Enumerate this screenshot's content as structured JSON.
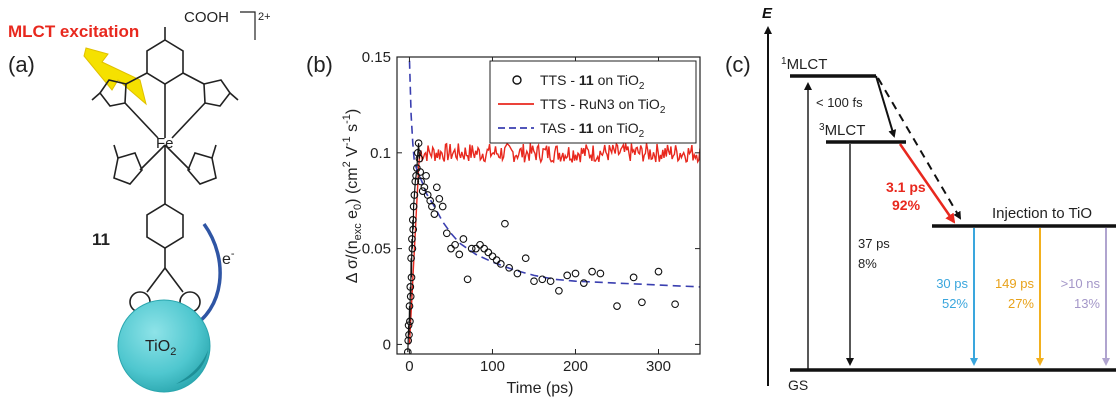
{
  "panels": {
    "a": {
      "label": "(a)",
      "excitation_label": "MLCT excitation",
      "cooh": "COOH",
      "charge": "2+",
      "metal": "Fe",
      "compound_number": "11",
      "electron": "e",
      "electron_sup": "-",
      "substrate": "TiO",
      "substrate_sub": "2",
      "colors": {
        "excitation": "#e8281e",
        "lightning": "#f5e100",
        "arrow": "#2f55a4",
        "sphere": "#4fc7cf"
      }
    },
    "c": {
      "label": "(c)",
      "energy_axis": "E",
      "levels": {
        "s1_sup": "1",
        "s1": "MLCT",
        "t3_sup": "3",
        "t3": "MLCT",
        "injection": "Injection to TiO",
        "gs": "GS"
      },
      "transitions": {
        "isc": "< 100 fs",
        "inj_time": "3.1 ps",
        "inj_pct": "92%",
        "t3_gs_time": "37 ps",
        "t3_gs_pct": "8%",
        "d1_time": "30 ps",
        "d1_pct": "52%",
        "d2_time": "149 ps",
        "d2_pct": "27%",
        "d3_time": ">10 ns",
        "d3_pct": "13%"
      },
      "colors": {
        "inj": "#e8281e",
        "d1": "#3aa6dd",
        "d2": "#f2b01e",
        "d3": "#b0a4cf"
      }
    }
  },
  "chart_data": {
    "type": "scatter",
    "label": "(b)",
    "xlabel": "Time (ps)",
    "ylabel": "Δ σ/(n_exc e_0) (cm² V⁻¹ s⁻¹)",
    "xlim": [
      -15,
      350
    ],
    "ylim": [
      -0.005,
      0.15
    ],
    "xticks": [
      0,
      100,
      200,
      300
    ],
    "yticks": [
      0,
      0.05,
      0.1,
      0.15
    ],
    "ytick_labels": [
      "0",
      "0.05",
      "0.1",
      "0.15"
    ],
    "legend_position": "top-right",
    "grid": false,
    "series": [
      {
        "name": "TTS - 11 on TiO2",
        "legend_text": [
          "TTS - ",
          "11",
          " on TiO",
          "2"
        ],
        "style": "markers",
        "color": "#111111",
        "points": [
          [
            -2,
            -0.004
          ],
          [
            -1.5,
            0.002
          ],
          [
            -1,
            0.01
          ],
          [
            -0.5,
            0.005
          ],
          [
            0,
            0.02
          ],
          [
            0.5,
            0.012
          ],
          [
            1,
            0.03
          ],
          [
            1.5,
            0.025
          ],
          [
            2,
            0.045
          ],
          [
            2.5,
            0.035
          ],
          [
            3,
            0.055
          ],
          [
            3.5,
            0.05
          ],
          [
            4,
            0.065
          ],
          [
            4.5,
            0.06
          ],
          [
            5,
            0.072
          ],
          [
            6,
            0.078
          ],
          [
            7,
            0.085
          ],
          [
            8,
            0.088
          ],
          [
            9,
            0.092
          ],
          [
            10,
            0.1
          ],
          [
            11,
            0.105
          ],
          [
            12,
            0.097
          ],
          [
            13,
            0.09
          ],
          [
            14,
            0.085
          ],
          [
            16,
            0.08
          ],
          [
            18,
            0.082
          ],
          [
            20,
            0.088
          ],
          [
            22,
            0.078
          ],
          [
            25,
            0.075
          ],
          [
            27,
            0.072
          ],
          [
            30,
            0.068
          ],
          [
            33,
            0.082
          ],
          [
            36,
            0.076
          ],
          [
            40,
            0.072
          ],
          [
            45,
            0.058
          ],
          [
            50,
            0.05
          ],
          [
            55,
            0.052
          ],
          [
            60,
            0.047
          ],
          [
            65,
            0.055
          ],
          [
            70,
            0.034
          ],
          [
            75,
            0.05
          ],
          [
            80,
            0.05
          ],
          [
            85,
            0.052
          ],
          [
            90,
            0.05
          ],
          [
            95,
            0.048
          ],
          [
            100,
            0.046
          ],
          [
            105,
            0.044
          ],
          [
            110,
            0.042
          ],
          [
            115,
            0.063
          ],
          [
            120,
            0.04
          ],
          [
            130,
            0.037
          ],
          [
            140,
            0.045
          ],
          [
            150,
            0.033
          ],
          [
            160,
            0.034
          ],
          [
            170,
            0.033
          ],
          [
            180,
            0.028
          ],
          [
            190,
            0.036
          ],
          [
            200,
            0.037
          ],
          [
            210,
            0.032
          ],
          [
            220,
            0.038
          ],
          [
            230,
            0.037
          ],
          [
            250,
            0.02
          ],
          [
            270,
            0.035
          ],
          [
            280,
            0.022
          ],
          [
            300,
            0.038
          ],
          [
            320,
            0.021
          ]
        ]
      },
      {
        "name": "TTS - RuN3 on TiO2",
        "legend_text": [
          "TTS - RuN3 on TiO",
          "2"
        ],
        "style": "line",
        "color": "#e8281e",
        "rise": {
          "start": 0,
          "end": 12,
          "plateau": 0.1,
          "noise": 0.005,
          "xmax": 350
        }
      },
      {
        "name": "TAS - 11 on TiO2",
        "legend_text": [
          "TAS - ",
          "11",
          " on TiO",
          "2"
        ],
        "style": "dashed",
        "color": "#3a3fb0",
        "points": [
          [
            0,
            0.148
          ],
          [
            2,
            0.12
          ],
          [
            4,
            0.105
          ],
          [
            6,
            0.095
          ],
          [
            10,
            0.09
          ],
          [
            15,
            0.085
          ],
          [
            20,
            0.079
          ],
          [
            30,
            0.072
          ],
          [
            40,
            0.064
          ],
          [
            50,
            0.058
          ],
          [
            60,
            0.053
          ],
          [
            80,
            0.047
          ],
          [
            100,
            0.043
          ],
          [
            125,
            0.039
          ],
          [
            150,
            0.036
          ],
          [
            175,
            0.034
          ],
          [
            200,
            0.033
          ],
          [
            250,
            0.032
          ],
          [
            300,
            0.031
          ],
          [
            350,
            0.03
          ]
        ]
      }
    ]
  }
}
